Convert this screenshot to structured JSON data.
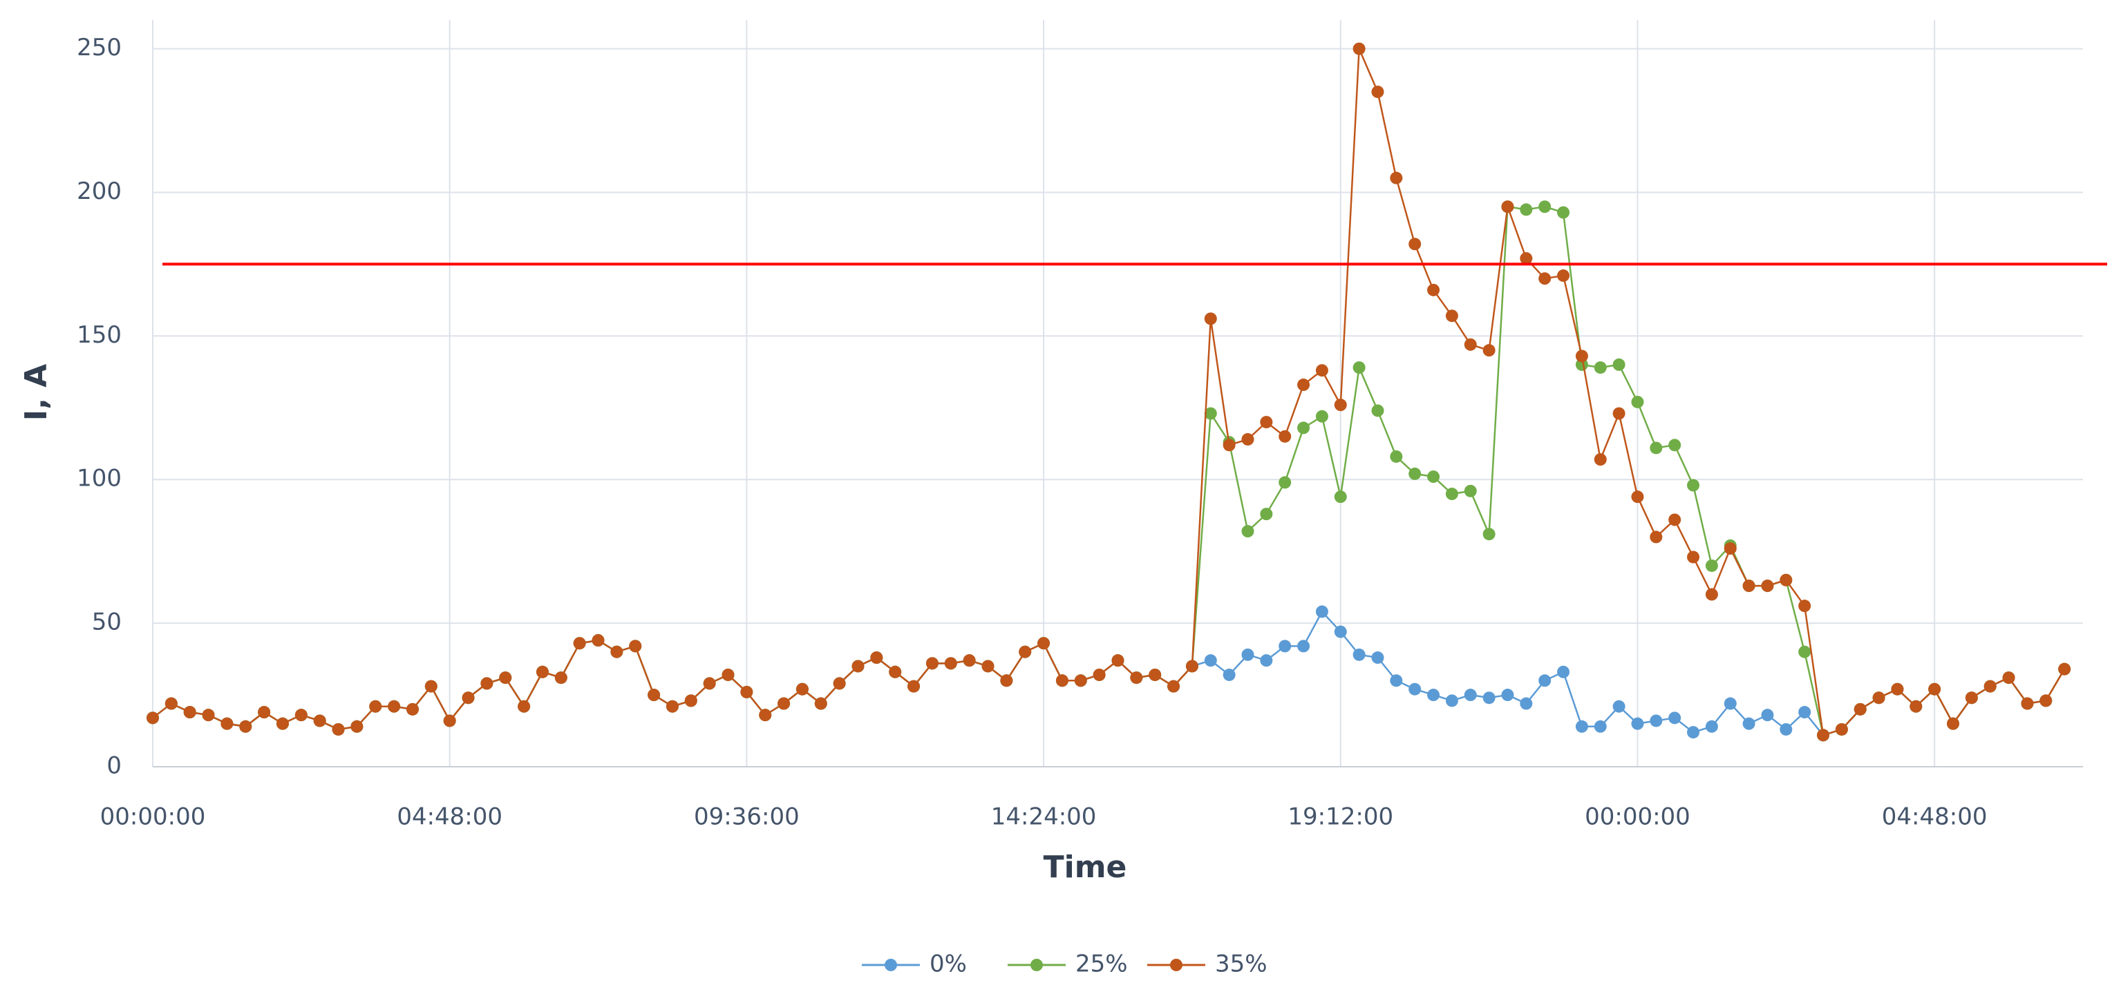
{
  "chart_data": {
    "type": "line",
    "xlabel": "Time",
    "ylabel": "I, A",
    "x": [
      0,
      0.3,
      0.6,
      0.9,
      1.2,
      1.5,
      1.8,
      2.1,
      2.4,
      2.7,
      3.0,
      3.3,
      3.6,
      3.9,
      4.2,
      4.5,
      4.8,
      5.1,
      5.4,
      5.7,
      6.0,
      6.3,
      6.6,
      6.9,
      7.2,
      7.5,
      7.8,
      8.1,
      8.4,
      8.7,
      9.0,
      9.3,
      9.6,
      9.9,
      10.2,
      10.5,
      10.8,
      11.1,
      11.4,
      11.7,
      12.0,
      12.3,
      12.6,
      12.9,
      13.2,
      13.5,
      13.8,
      14.1,
      14.4,
      14.7,
      15.0,
      15.3,
      15.6,
      15.9,
      16.2,
      16.5,
      16.8,
      17.1,
      17.4,
      17.7,
      18.0,
      18.3,
      18.6,
      18.9,
      19.2,
      19.5,
      19.8,
      20.1,
      20.4,
      20.7,
      21.0,
      21.3,
      21.6,
      21.9,
      22.2,
      22.5,
      22.8,
      23.1,
      23.4,
      23.7,
      24.0,
      24.3,
      24.6,
      24.9,
      25.2,
      25.5,
      25.8,
      26.1,
      26.4,
      26.7,
      27.0,
      27.3,
      27.6,
      27.9,
      28.2,
      28.5,
      28.8,
      29.1,
      29.4,
      29.7,
      30.0,
      30.3,
      30.6,
      30.9
    ],
    "series": [
      {
        "name": "0%",
        "color": "#5b9bd5",
        "values": [
          17,
          22,
          19,
          18,
          15,
          14,
          19,
          15,
          18,
          16,
          13,
          14,
          21,
          21,
          20,
          28,
          16,
          24,
          29,
          31,
          21,
          33,
          31,
          43,
          44,
          40,
          42,
          25,
          21,
          23,
          29,
          32,
          26,
          18,
          22,
          27,
          22,
          29,
          35,
          38,
          33,
          28,
          36,
          36,
          37,
          35,
          30,
          40,
          43,
          30,
          30,
          32,
          37,
          31,
          32,
          28,
          35,
          37,
          32,
          39,
          37,
          42,
          42,
          54,
          47,
          39,
          38,
          30,
          27,
          25,
          23,
          25,
          24,
          25,
          22,
          30,
          33,
          14,
          14,
          21,
          15,
          16,
          17,
          12,
          14,
          22,
          15,
          18,
          13,
          19,
          11,
          13,
          20,
          24,
          27,
          21,
          27,
          15,
          24,
          28,
          31,
          22,
          23,
          34
        ]
      },
      {
        "name": "25%",
        "color": "#70ad47",
        "values": [
          17,
          22,
          19,
          18,
          15,
          14,
          19,
          15,
          18,
          16,
          13,
          14,
          21,
          21,
          20,
          28,
          16,
          24,
          29,
          31,
          21,
          33,
          31,
          43,
          44,
          40,
          42,
          25,
          21,
          23,
          29,
          32,
          26,
          18,
          22,
          27,
          22,
          29,
          35,
          38,
          33,
          28,
          36,
          36,
          37,
          35,
          30,
          40,
          43,
          30,
          30,
          32,
          37,
          31,
          32,
          28,
          35,
          123,
          113,
          82,
          88,
          99,
          118,
          122,
          94,
          139,
          124,
          108,
          102,
          101,
          95,
          96,
          81,
          195,
          194,
          195,
          193,
          140,
          139,
          140,
          127,
          111,
          112,
          98,
          70,
          77,
          63,
          63,
          65,
          40,
          11,
          13,
          20,
          24,
          27,
          21,
          27,
          15,
          24,
          28,
          31,
          22,
          23,
          34
        ]
      },
      {
        "name": "35%",
        "color": "#c0561a",
        "values": [
          17,
          22,
          19,
          18,
          15,
          14,
          19,
          15,
          18,
          16,
          13,
          14,
          21,
          21,
          20,
          28,
          16,
          24,
          29,
          31,
          21,
          33,
          31,
          43,
          44,
          40,
          42,
          25,
          21,
          23,
          29,
          32,
          26,
          18,
          22,
          27,
          22,
          29,
          35,
          38,
          33,
          28,
          36,
          36,
          37,
          35,
          30,
          40,
          43,
          30,
          30,
          32,
          37,
          31,
          32,
          28,
          35,
          156,
          112,
          114,
          120,
          115,
          133,
          138,
          126,
          250,
          235,
          205,
          182,
          166,
          157,
          147,
          145,
          195,
          177,
          170,
          171,
          143,
          107,
          123,
          94,
          80,
          86,
          73,
          60,
          76,
          63,
          63,
          65,
          56,
          11,
          13,
          20,
          24,
          27,
          21,
          27,
          15,
          24,
          28,
          31,
          22,
          23,
          34
        ]
      }
    ],
    "threshold": {
      "value": 175,
      "color": "#ff0000"
    },
    "xlim": [
      0,
      31.2
    ],
    "xticks": [
      {
        "value": 0,
        "label": "00:00:00"
      },
      {
        "value": 4.8,
        "label": "04:48:00"
      },
      {
        "value": 9.6,
        "label": "09:36:00"
      },
      {
        "value": 14.4,
        "label": "14:24:00"
      },
      {
        "value": 19.2,
        "label": "19:12:00"
      },
      {
        "value": 24,
        "label": "00:00:00"
      },
      {
        "value": 28.8,
        "label": "04:48:00"
      }
    ],
    "ylim": [
      0,
      260
    ],
    "yticks": [
      0,
      50,
      100,
      150,
      200,
      250
    ],
    "grid": true,
    "legend": "bottom"
  }
}
